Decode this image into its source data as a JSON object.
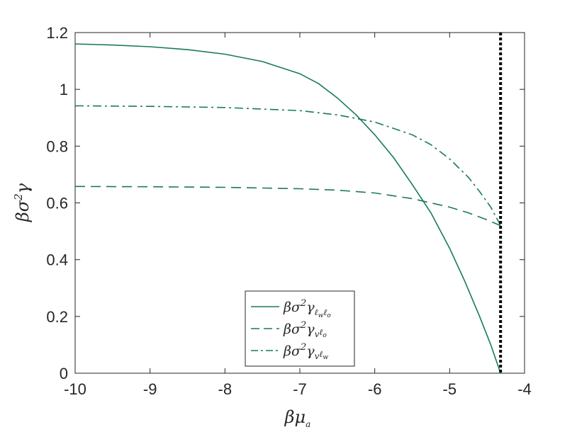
{
  "chart_data": {
    "type": "line",
    "xlabel": "βμ",
    "xlabel_sub": "a",
    "ylabel": "βσ",
    "ylabel_sup": "2",
    "ylabel_tail": "γ",
    "xlim": [
      -10,
      -4
    ],
    "ylim": [
      0,
      1.2
    ],
    "x_ticks": [
      -10,
      -9,
      -8,
      -7,
      -6,
      -5,
      -4
    ],
    "x_tick_labels": [
      "-10",
      "-9",
      "-8",
      "-7",
      "-6",
      "-5",
      "-4"
    ],
    "y_ticks": [
      0,
      0.2,
      0.4,
      0.6,
      0.8,
      1,
      1.2
    ],
    "y_tick_labels": [
      "0",
      "0.2",
      "0.4",
      "0.6",
      "0.8",
      "1",
      "1.2"
    ],
    "grid": false,
    "legend_position": "bottom-center",
    "color": "#187a5c",
    "vertical_line": {
      "x": -4.32,
      "style": "dotted",
      "color": "#000000"
    },
    "series": [
      {
        "name": "βσ²γ_{ℓwℓo}",
        "legend": {
          "main": "βσ",
          "sup": "2",
          "tail": "γ",
          "sub": "ℓ",
          "sub2": "w",
          "sub3": "ℓ",
          "sub4": "o"
        },
        "style": "solid",
        "x": [
          -10,
          -9.5,
          -9,
          -8.5,
          -8,
          -7.5,
          -7,
          -6.75,
          -6.5,
          -6.25,
          -6,
          -5.75,
          -5.5,
          -5.25,
          -5,
          -4.8,
          -4.6,
          -4.45,
          -4.32
        ],
        "y": [
          1.16,
          1.156,
          1.15,
          1.14,
          1.124,
          1.098,
          1.055,
          1.02,
          0.97,
          0.91,
          0.84,
          0.76,
          0.665,
          0.565,
          0.44,
          0.325,
          0.2,
          0.1,
          0.0
        ]
      },
      {
        "name": "βσ²γ_{vℓo}",
        "legend": {
          "main": "βσ",
          "sup": "2",
          "tail": "γ",
          "sub": "v",
          "sub2": "",
          "sub3": "ℓ",
          "sub4": "o"
        },
        "style": "dashed",
        "x": [
          -10,
          -9,
          -8,
          -7,
          -6.5,
          -6,
          -5.5,
          -5,
          -4.75,
          -4.5,
          -4.32
        ],
        "y": [
          0.658,
          0.657,
          0.655,
          0.65,
          0.645,
          0.635,
          0.615,
          0.585,
          0.565,
          0.54,
          0.52
        ]
      },
      {
        "name": "βσ²γ_{vℓw}",
        "legend": {
          "main": "βσ",
          "sup": "2",
          "tail": "γ",
          "sub": "v",
          "sub2": "",
          "sub3": "ℓ",
          "sub4": "w"
        },
        "style": "dashdot",
        "x": [
          -10,
          -9,
          -8,
          -7,
          -6.5,
          -6,
          -5.5,
          -5.25,
          -5,
          -4.75,
          -4.6,
          -4.45,
          -4.32
        ],
        "y": [
          0.942,
          0.94,
          0.936,
          0.925,
          0.91,
          0.885,
          0.84,
          0.805,
          0.755,
          0.69,
          0.64,
          0.585,
          0.52
        ]
      }
    ]
  }
}
